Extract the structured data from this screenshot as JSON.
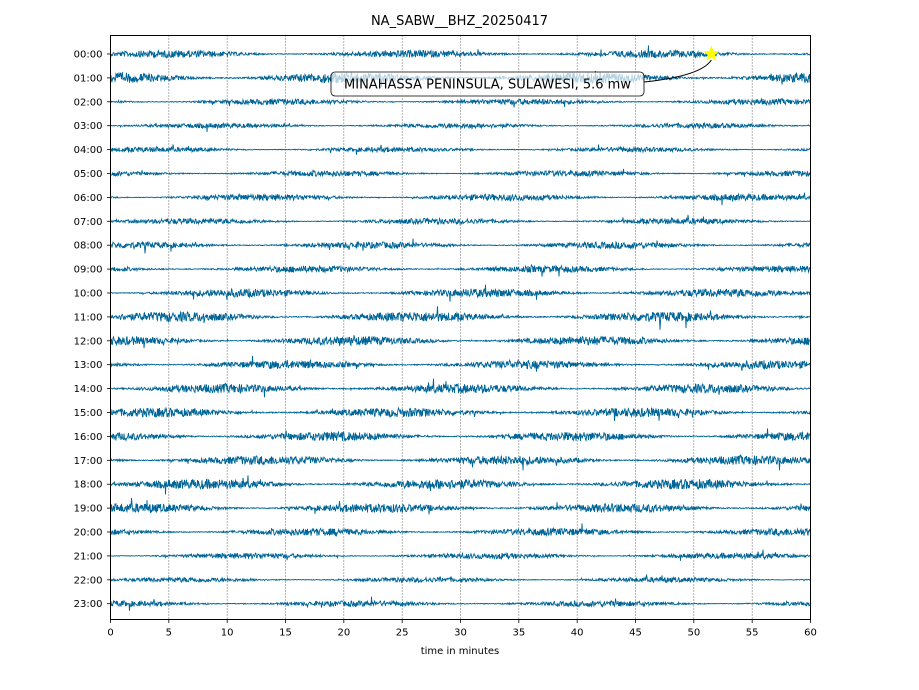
{
  "chart_data": {
    "type": "line",
    "title": "NA_SABW__BHZ_20250417",
    "xlabel": "time in minutes",
    "ylabel": "",
    "xlim": [
      0,
      60
    ],
    "x_ticks": [
      0,
      5,
      10,
      15,
      20,
      25,
      30,
      35,
      40,
      45,
      50,
      55,
      60
    ],
    "y_categories": [
      "00:00",
      "01:00",
      "02:00",
      "03:00",
      "04:00",
      "05:00",
      "06:00",
      "07:00",
      "08:00",
      "09:00",
      "10:00",
      "11:00",
      "12:00",
      "13:00",
      "14:00",
      "15:00",
      "16:00",
      "17:00",
      "18:00",
      "19:00",
      "20:00",
      "21:00",
      "22:00",
      "23:00"
    ],
    "grid": "vertical dotted lines at each x tick",
    "trace_color": "#006699",
    "trace_relative_amplitude": [
      0.9,
      1.3,
      0.7,
      0.6,
      0.6,
      0.7,
      0.8,
      0.7,
      0.8,
      0.8,
      1.0,
      1.2,
      1.1,
      1.0,
      1.1,
      1.1,
      1.1,
      1.1,
      1.2,
      1.1,
      0.9,
      0.7,
      0.6,
      0.7
    ],
    "event": {
      "label": "MINAHASSA PENINSULA, SULAWESI, 5.6 mw",
      "x": 51.5,
      "row": "00:00",
      "marker": "star",
      "marker_color": "#ffff00"
    }
  }
}
